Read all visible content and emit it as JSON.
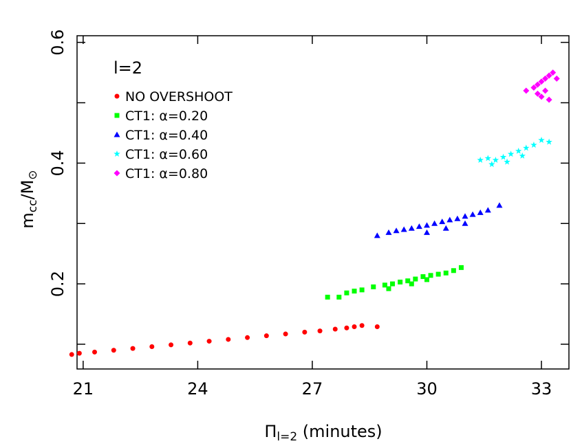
{
  "chart_data": {
    "type": "scatter",
    "annotation": "l=2",
    "xlabel": [
      {
        "text": "Π",
        "sub": false
      },
      {
        "text": "l=2",
        "sub": true
      },
      {
        "text": " (minutes)",
        "sub": false
      }
    ],
    "ylabel": [
      {
        "text": "m",
        "sub": false
      },
      {
        "text": "cc",
        "sub": true
      },
      {
        "text": "/M",
        "sub": false
      },
      {
        "text": "⊙",
        "sub": true
      }
    ],
    "xlim": [
      20.84,
      33.72
    ],
    "xticks": [
      21,
      24,
      27,
      30,
      33
    ],
    "ylim": [
      0.059,
      0.611
    ],
    "yticks": [
      0.2,
      0.4,
      0.6
    ],
    "yminor_ticks": [
      0.1,
      0.3,
      0.5
    ],
    "legend": "top-left",
    "series": [
      {
        "name": "NO OVERSHOOT",
        "color": "#ff0000",
        "marker": "circle",
        "x": [
          20.7,
          20.9,
          21.3,
          21.8,
          22.3,
          22.8,
          23.3,
          23.8,
          24.3,
          24.8,
          25.3,
          25.8,
          26.3,
          26.8,
          27.2,
          27.6,
          27.9,
          28.1,
          28.3,
          28.7
        ],
        "values": [
          0.083,
          0.085,
          0.087,
          0.09,
          0.093,
          0.096,
          0.099,
          0.102,
          0.105,
          0.108,
          0.111,
          0.114,
          0.117,
          0.12,
          0.122,
          0.125,
          0.127,
          0.129,
          0.131,
          0.129
        ]
      },
      {
        "name": "CT1: α=0.20",
        "color": "#00ff00",
        "marker": "square",
        "x": [
          27.4,
          27.7,
          27.9,
          28.1,
          28.3,
          28.6,
          28.9,
          29.1,
          29.3,
          29.5,
          29.7,
          29.9,
          30.1,
          30.3,
          30.5,
          30.7,
          30.9,
          29.0,
          29.6,
          30.0
        ],
        "values": [
          0.178,
          0.178,
          0.185,
          0.188,
          0.19,
          0.195,
          0.198,
          0.2,
          0.203,
          0.205,
          0.208,
          0.212,
          0.214,
          0.216,
          0.218,
          0.222,
          0.227,
          0.192,
          0.2,
          0.207
        ]
      },
      {
        "name": "CT1: α=0.40",
        "color": "#0000ff",
        "marker": "triangle",
        "x": [
          28.7,
          29.0,
          29.2,
          29.4,
          29.6,
          29.8,
          30.0,
          30.2,
          30.4,
          30.6,
          30.8,
          31.0,
          31.2,
          31.4,
          31.6,
          31.9,
          30.0,
          30.5,
          31.0
        ],
        "values": [
          0.28,
          0.285,
          0.288,
          0.29,
          0.292,
          0.295,
          0.297,
          0.3,
          0.303,
          0.306,
          0.308,
          0.312,
          0.315,
          0.318,
          0.322,
          0.33,
          0.285,
          0.292,
          0.3
        ]
      },
      {
        "name": "CT1: α=0.60",
        "color": "#00ffff",
        "marker": "star",
        "x": [
          31.4,
          31.6,
          31.8,
          32.0,
          32.2,
          32.4,
          32.6,
          32.8,
          33.0,
          33.2,
          31.7,
          32.1,
          32.5
        ],
        "values": [
          0.405,
          0.408,
          0.405,
          0.41,
          0.415,
          0.42,
          0.425,
          0.43,
          0.438,
          0.435,
          0.398,
          0.402,
          0.412
        ]
      },
      {
        "name": "CT1: α=0.80",
        "color": "#ff00ff",
        "marker": "diamond",
        "x": [
          32.6,
          32.8,
          32.9,
          33.0,
          33.1,
          33.2,
          33.3,
          33.4,
          33.0,
          33.2,
          32.9,
          33.1
        ],
        "values": [
          0.52,
          0.525,
          0.53,
          0.535,
          0.54,
          0.545,
          0.55,
          0.54,
          0.51,
          0.505,
          0.515,
          0.52
        ]
      }
    ]
  }
}
